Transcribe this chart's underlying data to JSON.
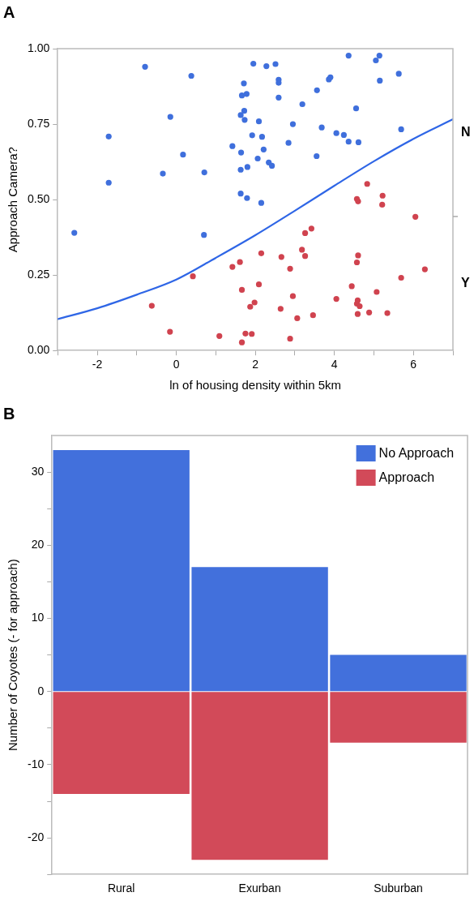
{
  "chart_data": [
    {
      "type": "scatter",
      "title": "A",
      "xlabel": "ln of housing density within 5km",
      "ylabel": "Approach Camera?",
      "xlim": [
        -3,
        7
      ],
      "xticks": [
        {
          "value": -3,
          "label": null
        },
        -2,
        {
          "value": -1,
          "label": null
        },
        0,
        {
          "value": 1,
          "label": null
        },
        2,
        {
          "value": 3,
          "label": null
        },
        4,
        {
          "value": 5,
          "label": null
        },
        6,
        {
          "value": 7,
          "label": null
        }
      ],
      "ylim": [
        0,
        1
      ],
      "yticks": [
        {
          "value": 0,
          "label": "0.00"
        },
        {
          "value": 0.25,
          "label": "0.25"
        },
        {
          "value": 0.5,
          "label": "0.50"
        },
        {
          "value": 0.75,
          "label": "0.75"
        },
        {
          "value": 1,
          "label": "1.00"
        }
      ],
      "annotations": [
        "N",
        "Y"
      ],
      "grid": false,
      "legend": false,
      "marker": "circle",
      "series": [
        {
          "type": "scatter",
          "color": "#3f6fdc",
          "x": [
            -0.79,
            0.38,
            1.95,
            1.71,
            1.66,
            1.78,
            -0.15,
            1.72,
            1.63,
            1.73,
            2.09,
            -1.71,
            1.92,
            2.17,
            1.42,
            1.64,
            2.21,
            0.17,
            2.06,
            1.63,
            1.8,
            -0.34,
            0.71,
            -1.71,
            1.63,
            1.79,
            2.28,
            2.51,
            4.36,
            5.14,
            5.05,
            5.63,
            5.15,
            3.86,
            3.9,
            2.59,
            2.59,
            3.56,
            2.59,
            3.19,
            4.55,
            2.95,
            3.68,
            5.69,
            4.05,
            4.24,
            4.36,
            4.61,
            2.84,
            3.55,
            2.34,
            2.42,
            -2.58,
            0.7,
            2.15
          ],
          "values": [
            0.94,
            0.91,
            0.95,
            0.885,
            0.845,
            0.85,
            0.774,
            0.794,
            0.78,
            0.764,
            0.759,
            0.709,
            0.713,
            0.708,
            0.677,
            0.656,
            0.666,
            0.649,
            0.636,
            0.599,
            0.608,
            0.586,
            0.59,
            0.556,
            0.52,
            0.505,
            0.942,
            0.949,
            0.977,
            0.977,
            0.961,
            0.917,
            0.894,
            0.898,
            0.905,
            0.897,
            0.887,
            0.862,
            0.838,
            0.816,
            0.802,
            0.75,
            0.739,
            0.733,
            0.72,
            0.714,
            0.692,
            0.69,
            0.688,
            0.644,
            0.623,
            0.612,
            0.39,
            0.383,
            0.489
          ]
        },
        {
          "type": "scatter",
          "color": "#d0434f",
          "x": [
            2.15,
            1.61,
            1.42,
            0.42,
            1.66,
            2.09,
            -0.62,
            1.98,
            1.87,
            -0.16,
            1.09,
            1.75,
            1.91,
            1.66,
            4.57,
            4.6,
            5.22,
            5.21,
            6.05,
            4.83,
            3.42,
            3.26,
            2.66,
            3.18,
            3.26,
            4.6,
            4.57,
            2.88,
            6.29,
            5.69,
            4.44,
            5.07,
            2.95,
            4.05,
            4.59,
            4.57,
            4.64,
            2.64,
            4.59,
            4.88,
            5.34,
            3.06,
            3.46,
            2.88
          ],
          "values": [
            0.322,
            0.293,
            0.277,
            0.246,
            0.201,
            0.219,
            0.148,
            0.159,
            0.145,
            0.062,
            0.048,
            0.056,
            0.055,
            0.027,
            0.502,
            0.494,
            0.513,
            0.483,
            0.443,
            0.552,
            0.404,
            0.389,
            0.31,
            0.334,
            0.313,
            0.315,
            0.292,
            0.271,
            0.269,
            0.241,
            0.213,
            0.194,
            0.18,
            0.171,
            0.166,
            0.155,
            0.147,
            0.138,
            0.121,
            0.126,
            0.124,
            0.107,
            0.117,
            0.039
          ]
        },
        {
          "type": "line",
          "color": "#2f66e6",
          "marker": "none",
          "x": [
            -3,
            -2,
            -1,
            0,
            1,
            2,
            3,
            4,
            5,
            6,
            7
          ],
          "values": [
            0.104,
            0.14,
            0.185,
            0.235,
            0.307,
            0.382,
            0.463,
            0.546,
            0.627,
            0.701,
            0.766
          ]
        }
      ]
    },
    {
      "type": "bar",
      "title": "B",
      "ylabel": "Number of Coyotes (- for approach)",
      "categories": [
        "Rural",
        "Exurban",
        "Suburban"
      ],
      "ylim": [
        -25,
        35
      ],
      "yticks": [
        {
          "value": -25,
          "label": null
        },
        -20,
        {
          "value": -15,
          "label": null
        },
        -10,
        {
          "value": -5,
          "label": null
        },
        0,
        {
          "value": 5,
          "label": null
        },
        10,
        {
          "value": 15,
          "label": null
        },
        20,
        {
          "value": 25,
          "label": null
        },
        30
      ],
      "stacked": true,
      "grid": false,
      "legend": "top right",
      "series": [
        {
          "name": "No Approach",
          "color": "#4270dc",
          "values": [
            33,
            17,
            5
          ]
        },
        {
          "name": "Approach",
          "color": "#d24a59",
          "values": [
            -14,
            -23,
            -7
          ]
        }
      ]
    }
  ]
}
